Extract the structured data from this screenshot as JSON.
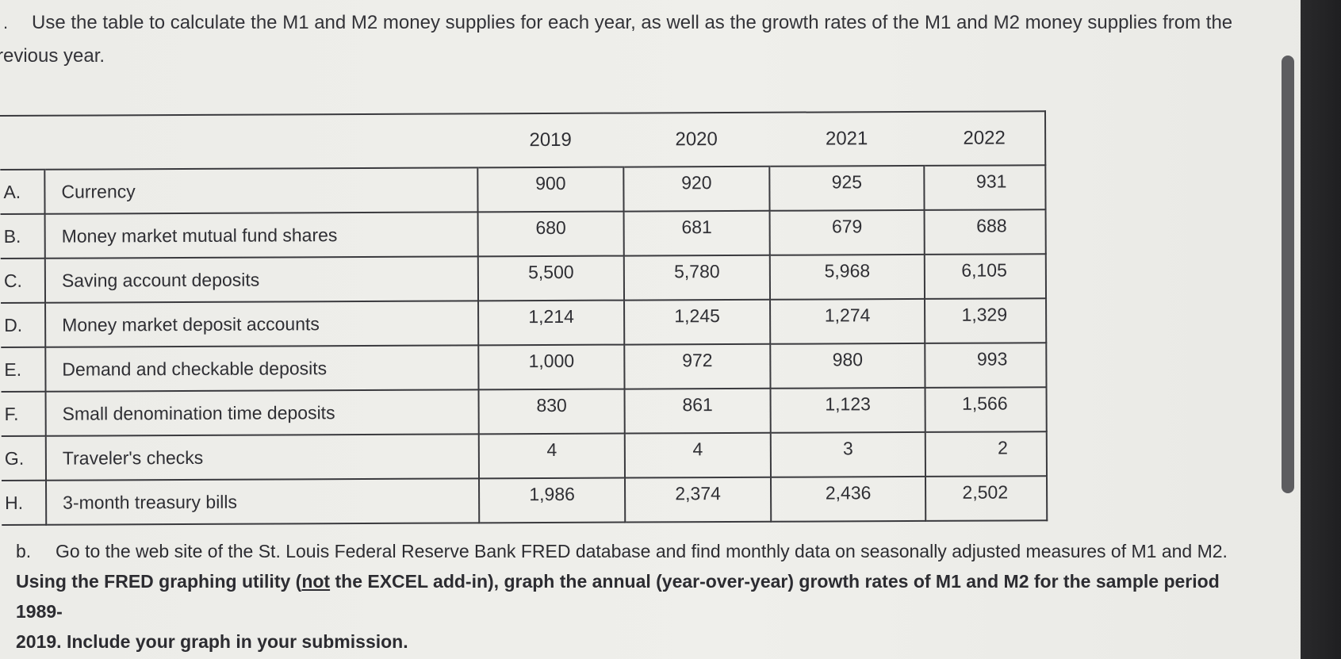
{
  "prompt": {
    "bullet": ".",
    "line1": "Use the table to calculate the M1 and M2 money supplies for each year, as well as the growth rates of the M1 and M2 money supplies from the",
    "line2": "revious year."
  },
  "table": {
    "years": [
      "2019",
      "2020",
      "2021",
      "2022"
    ],
    "rows": [
      {
        "letter": "A.",
        "label": "Currency",
        "values": [
          "900",
          "920",
          "925",
          "931"
        ]
      },
      {
        "letter": "B.",
        "label": "Money market mutual fund shares",
        "values": [
          "680",
          "681",
          "679",
          "688"
        ]
      },
      {
        "letter": "C.",
        "label": "Saving account deposits",
        "values": [
          "5,500",
          "5,780",
          "5,968",
          "6,105"
        ]
      },
      {
        "letter": "D.",
        "label": "Money market deposit accounts",
        "values": [
          "1,214",
          "1,245",
          "1,274",
          "1,329"
        ]
      },
      {
        "letter": "E.",
        "label": "Demand and checkable deposits",
        "values": [
          "1,000",
          "972",
          "980",
          "993"
        ]
      },
      {
        "letter": "F.",
        "label": "Small denomination time deposits",
        "values": [
          "830",
          "861",
          "1,123",
          "1,566"
        ]
      },
      {
        "letter": "G.",
        "label": "Traveler's checks",
        "values": [
          "4",
          "4",
          "3",
          "2"
        ]
      },
      {
        "letter": "H.",
        "label": "3-month treasury bills",
        "values": [
          "1,986",
          "2,374",
          "2,436",
          "2,502"
        ]
      }
    ]
  },
  "part_b": {
    "marker": "b.",
    "plain": "Go to the web site of the St. Louis Federal Reserve Bank FRED database and find monthly data on seasonally adjusted measures of M1 and M2.",
    "bold_before": "Using the FRED graphing utility (",
    "bold_underlined": "not",
    "bold_after": " the EXCEL add-in), graph the annual (year-over-year) growth rates of M1 and M2 for the sample period 1989-",
    "bold_line3": "2019. Include your graph in your submission."
  }
}
